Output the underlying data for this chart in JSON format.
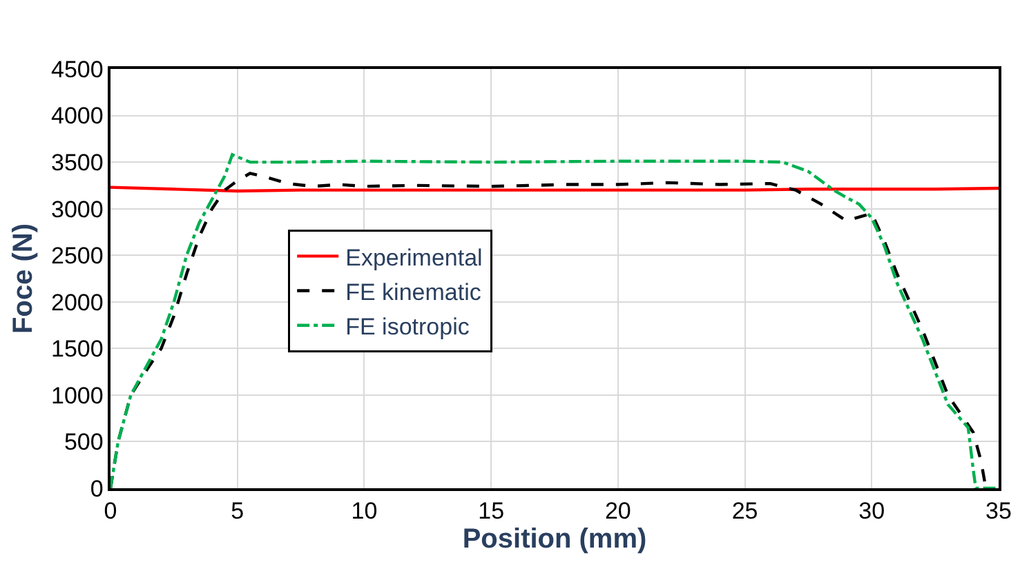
{
  "chart_data": {
    "type": "line",
    "xlabel": "Position (mm)",
    "ylabel": "Foce (N)",
    "xlim": [
      0,
      35
    ],
    "xticks": [
      0,
      5,
      10,
      15,
      20,
      25,
      30,
      35
    ],
    "ylim": [
      0,
      4500
    ],
    "yticks": [
      0,
      500,
      1000,
      1500,
      2000,
      2500,
      3000,
      3500,
      4000,
      4500
    ],
    "grid": true,
    "legend": "left",
    "marker": "none",
    "series": [
      {
        "name": "Experimental",
        "color": "#ff0000",
        "line_style": "solid",
        "x": [
          0,
          2.5,
          5,
          7.5,
          10,
          12.5,
          15,
          17.5,
          20,
          22.5,
          25,
          27.5,
          30,
          32.5,
          35
        ],
        "values": [
          3230,
          3210,
          3190,
          3200,
          3200,
          3200,
          3200,
          3200,
          3200,
          3200,
          3200,
          3210,
          3210,
          3210,
          3220
        ]
      },
      {
        "name": "FE kinematic",
        "color": "#000000",
        "line_style": "dashed",
        "x": [
          0,
          0.3,
          0.8,
          1.5,
          2,
          2.5,
          3,
          3.5,
          4,
          4.5,
          5,
          5.5,
          6,
          7,
          8,
          9,
          10,
          12,
          15,
          18,
          20,
          22,
          24,
          26,
          27,
          28,
          29,
          30,
          30.5,
          31,
          32,
          33,
          34,
          34.3,
          34.5
        ],
        "values": [
          0,
          500,
          1000,
          1300,
          1500,
          1850,
          2300,
          2700,
          3000,
          3200,
          3300,
          3380,
          3350,
          3270,
          3240,
          3260,
          3240,
          3250,
          3240,
          3260,
          3260,
          3280,
          3260,
          3270,
          3200,
          3050,
          2870,
          2950,
          2650,
          2300,
          1700,
          1000,
          600,
          300,
          0
        ]
      },
      {
        "name": "FE isotropic",
        "color": "#00b050",
        "line_style": "dashdot",
        "x": [
          0,
          0.3,
          0.8,
          1.5,
          2,
          2.5,
          3,
          3.5,
          4,
          4.5,
          4.8,
          5.5,
          7,
          10,
          15,
          20,
          25,
          26.5,
          27.5,
          28.5,
          29,
          29.5,
          30,
          30.5,
          31,
          32,
          33,
          33.8,
          34,
          34.1,
          35
        ],
        "values": [
          0,
          500,
          1000,
          1350,
          1600,
          2000,
          2500,
          2850,
          3100,
          3350,
          3580,
          3500,
          3500,
          3510,
          3500,
          3510,
          3510,
          3500,
          3400,
          3200,
          3120,
          3050,
          2900,
          2600,
          2200,
          1600,
          900,
          650,
          200,
          0,
          0
        ]
      }
    ]
  }
}
